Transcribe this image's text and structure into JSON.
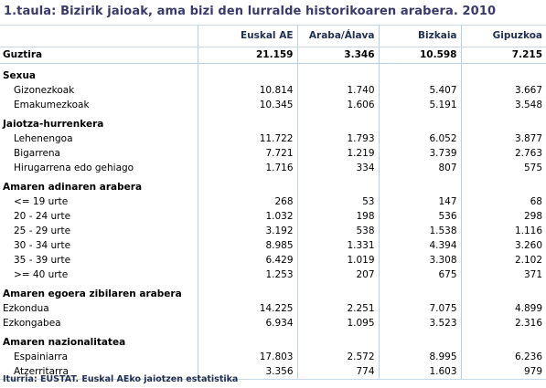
{
  "title": "1.taula: Bizirik jaioak, ama bizi den lurralde historikoaren arabera. 2010",
  "columns": [
    "Euskal AE",
    "Araba/Álava",
    "Bizkaia",
    "Gipuzkoa"
  ],
  "total": {
    "label": "Guztira",
    "values": [
      "21.159",
      "3.346",
      "10.598",
      "7.215"
    ]
  },
  "sections": [
    {
      "title": "Sexua",
      "indent": true,
      "rows": [
        {
          "label": "Gizonezkoak",
          "values": [
            "10.814",
            "1.740",
            "5.407",
            "3.667"
          ]
        },
        {
          "label": "Emakumezkoak",
          "values": [
            "10.345",
            "1.606",
            "5.191",
            "3.548"
          ]
        }
      ]
    },
    {
      "title": "Jaiotza-hurrenkera",
      "indent": true,
      "rows": [
        {
          "label": "Lehenengoa",
          "values": [
            "11.722",
            "1.793",
            "6.052",
            "3.877"
          ]
        },
        {
          "label": "Bigarrena",
          "values": [
            "7.721",
            "1.219",
            "3.739",
            "2.763"
          ]
        },
        {
          "label": "Hirugarrena edo gehiago",
          "values": [
            "1.716",
            "334",
            "807",
            "575"
          ]
        }
      ]
    },
    {
      "title": "Amaren adinaren arabera",
      "indent": true,
      "rows": [
        {
          "label": "<= 19 urte",
          "values": [
            "268",
            "53",
            "147",
            "68"
          ]
        },
        {
          "label": "20 - 24 urte",
          "values": [
            "1.032",
            "198",
            "536",
            "298"
          ]
        },
        {
          "label": "25 - 29 urte",
          "values": [
            "3.192",
            "538",
            "1.538",
            "1.116"
          ]
        },
        {
          "label": "30 - 34 urte",
          "values": [
            "8.985",
            "1.331",
            "4.394",
            "3.260"
          ]
        },
        {
          "label": "35 - 39 urte",
          "values": [
            "6.429",
            "1.019",
            "3.308",
            "2.102"
          ]
        },
        {
          "label": ">= 40 urte",
          "values": [
            "1.253",
            "207",
            "675",
            "371"
          ]
        }
      ]
    },
    {
      "title": "Amaren egoera zibilaren arabera",
      "indent": false,
      "rows": [
        {
          "label": "Ezkondua",
          "values": [
            "14.225",
            "2.251",
            "7.075",
            "4.899"
          ]
        },
        {
          "label": "Ezkongabea",
          "values": [
            "6.934",
            "1.095",
            "3.523",
            "2.316"
          ]
        }
      ]
    },
    {
      "title": "Amaren nazionalitatea",
      "indent": true,
      "rows": [
        {
          "label": "Espainiarra",
          "values": [
            "17.803",
            "2.572",
            "8.995",
            "6.236"
          ]
        },
        {
          "label": "Atzerritarra",
          "values": [
            "3.356",
            "774",
            "1.603",
            "979"
          ]
        }
      ]
    }
  ],
  "source": "Iturria: EUSTAT. Euskal AEko jaiotzen estatistika"
}
